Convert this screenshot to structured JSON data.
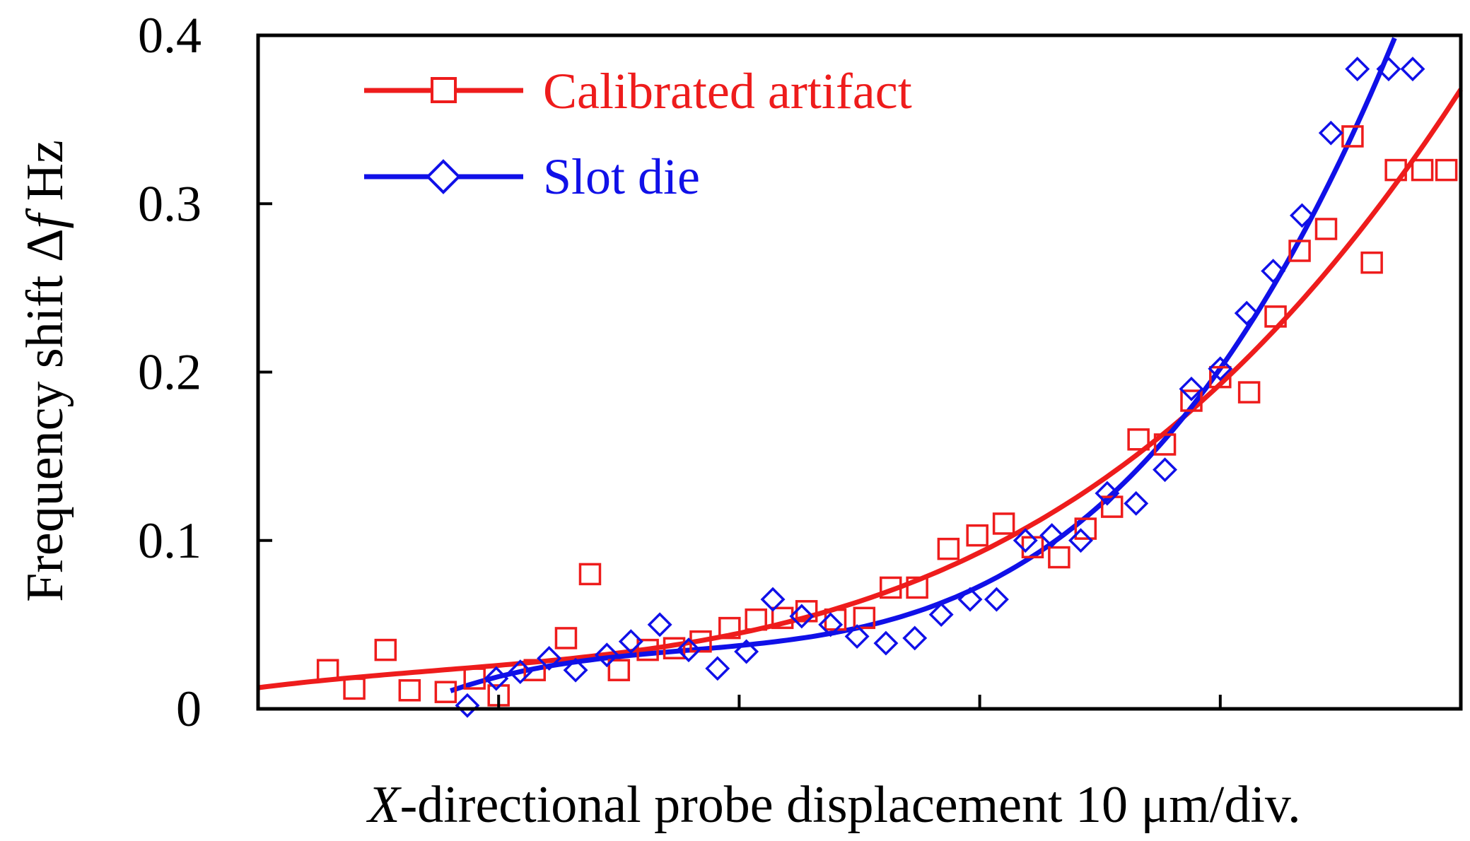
{
  "chart_data": {
    "type": "scatter",
    "title": "",
    "xlabel_italic": "X",
    "xlabel_rest": "-directional probe displacement  10 μm/div.",
    "ylabel_main": "Frequency shift  Δ",
    "ylabel_italic": "f",
    "ylabel_unit": " Hz",
    "xlim": [
      0,
      50
    ],
    "ylim": [
      0,
      0.4
    ],
    "y_ticks": [
      0,
      0.1,
      0.2,
      0.3,
      0.4
    ],
    "y_tick_labels": [
      "0",
      "0.1",
      "0.2",
      "0.3",
      "0.4"
    ],
    "x_ticks": [
      10,
      20,
      30,
      40
    ],
    "x_tick_labels": [],
    "grid": false,
    "legend_position": "top-left",
    "series": [
      {
        "name": "Calibrated artifact",
        "color": "#ee1c1c",
        "marker": "square",
        "x": [
          2.9,
          4.0,
          5.3,
          6.3,
          7.8,
          9.0,
          10.0,
          11.5,
          12.8,
          13.8,
          15.0,
          16.2,
          17.3,
          18.4,
          19.6,
          20.7,
          21.8,
          22.8,
          24.0,
          25.2,
          26.3,
          27.4,
          28.7,
          29.9,
          31.0,
          32.2,
          33.3,
          34.4,
          35.5,
          36.6,
          37.7,
          38.8,
          40.0,
          41.2,
          42.3,
          43.3,
          44.4,
          45.5,
          46.3,
          47.3,
          48.4,
          49.4
        ],
        "y": [
          0.023,
          0.012,
          0.035,
          0.011,
          0.01,
          0.018,
          0.008,
          0.023,
          0.042,
          0.08,
          0.023,
          0.035,
          0.036,
          0.04,
          0.048,
          0.053,
          0.054,
          0.058,
          0.053,
          0.054,
          0.072,
          0.072,
          0.095,
          0.103,
          0.11,
          0.096,
          0.09,
          0.107,
          0.12,
          0.16,
          0.157,
          0.183,
          0.197,
          0.188,
          0.233,
          0.272,
          0.285,
          0.34,
          0.265,
          0.32,
          0.32,
          0.32
        ]
      },
      {
        "name": "Slot die",
        "color": "#1010e8",
        "marker": "diamond",
        "x": [
          8.7,
          9.9,
          10.9,
          12.1,
          13.2,
          14.5,
          15.5,
          16.7,
          17.9,
          19.1,
          20.3,
          21.4,
          22.6,
          23.8,
          24.9,
          26.1,
          27.3,
          28.4,
          29.6,
          30.7,
          31.9,
          33.0,
          34.2,
          35.3,
          36.5,
          37.7,
          38.8,
          40.0,
          41.1,
          42.2,
          43.4,
          44.6,
          45.7,
          47.0,
          48.0
        ],
        "y": [
          0.002,
          0.018,
          0.022,
          0.03,
          0.023,
          0.032,
          0.04,
          0.05,
          0.035,
          0.024,
          0.034,
          0.065,
          0.055,
          0.05,
          0.043,
          0.039,
          0.042,
          0.056,
          0.065,
          0.065,
          0.1,
          0.103,
          0.1,
          0.128,
          0.122,
          0.142,
          0.19,
          0.202,
          0.235,
          0.26,
          0.293,
          0.342,
          0.38,
          0.38,
          0.38
        ]
      }
    ]
  }
}
